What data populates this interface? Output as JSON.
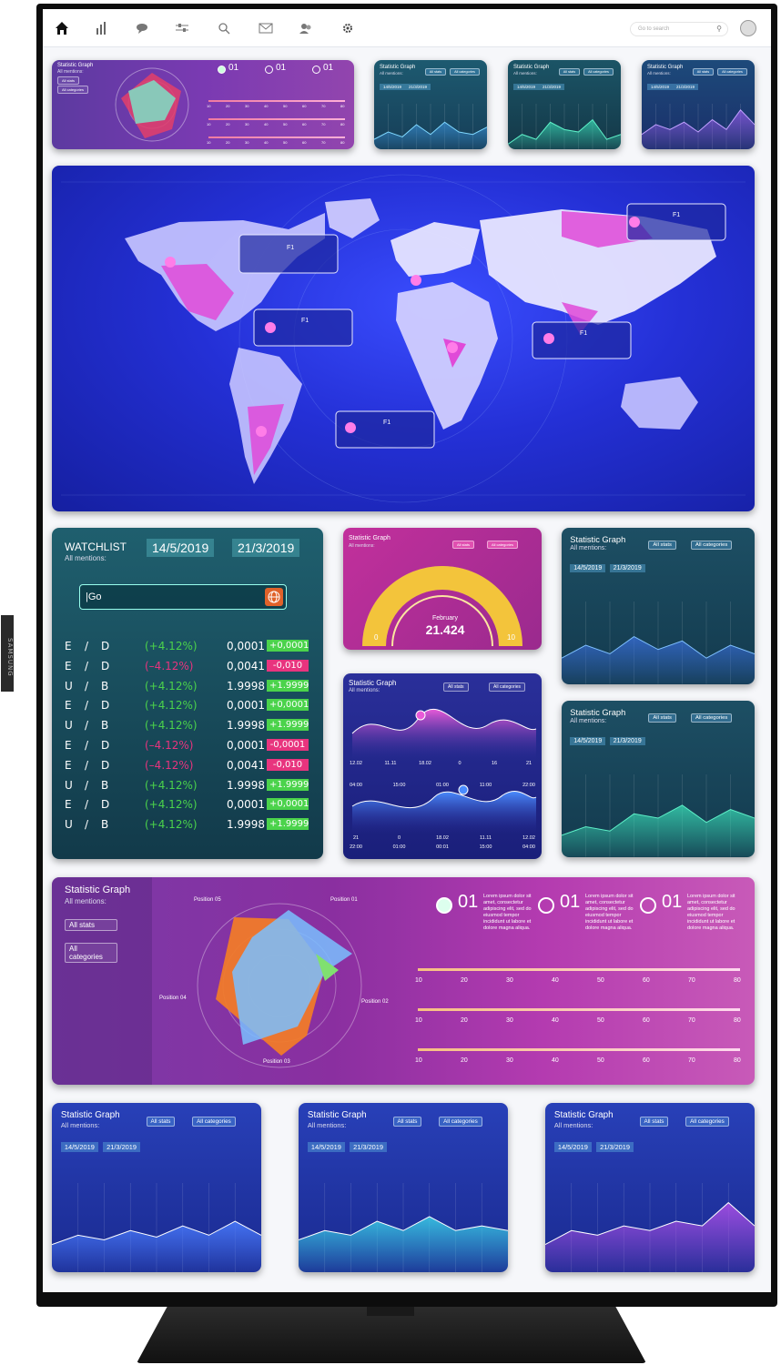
{
  "brand_side_label": "SAMSUNG",
  "colors": {
    "purple": "#6a2f96",
    "magenta": "#c0309a",
    "teal": "#1b5a66",
    "blue": "#1e2fb0",
    "green": "#4bd34b",
    "pink": "#e8347e"
  },
  "topnav": {
    "icons": [
      "home-icon",
      "bar-chart-icon",
      "chat-icon",
      "sliders-icon",
      "search-icon",
      "mail-icon",
      "users-icon",
      "gear-icon"
    ],
    "search_placeholder": "Go to search"
  },
  "top_radar": {
    "title": "Statistic Graph",
    "subtitle": "All mentions:",
    "dropdown1": "All stats",
    "dropdown2": "All categories",
    "options": [
      {
        "num": "01"
      },
      {
        "num": "01"
      },
      {
        "num": "01"
      }
    ],
    "scale": [
      "10",
      "20",
      "30",
      "40",
      "50",
      "60",
      "70",
      "80"
    ]
  },
  "top_minis": [
    {
      "title": "Statistic Graph",
      "subtitle": "All mentions:",
      "d1": "All stats",
      "d2": "All categories",
      "date1": "14/5/2019",
      "date2": "21/3/2019",
      "style": "teal-line"
    },
    {
      "title": "Statistic Graph",
      "subtitle": "All mentions:",
      "d1": "All stats",
      "d2": "All categories",
      "date1": "14/5/2019",
      "date2": "21/3/2019",
      "style": "teal-fill"
    },
    {
      "title": "Statistic Graph",
      "subtitle": "All mentions:",
      "d1": "All stats",
      "d2": "All categories",
      "date1": "14/5/2019",
      "date2": "21/3/2019",
      "style": "purple-fill"
    }
  ],
  "map": {
    "label": "F1"
  },
  "watchlist": {
    "title": "WATCHLIST",
    "subtitle": "All mentions:",
    "date1": "14/5/2019",
    "date2": "21/3/2019",
    "search_value": "|Go",
    "rows": [
      {
        "a": "E",
        "b": "D",
        "pct": "(+4.12%)",
        "val": "0,0001",
        "chg": "+0,0001",
        "up": true
      },
      {
        "a": "E",
        "b": "D",
        "pct": "(–4.12%)",
        "val": "0,0041",
        "chg": "-0,010",
        "up": false
      },
      {
        "a": "U",
        "b": "B",
        "pct": "(+4.12%)",
        "val": "1.9998",
        "chg": "+1.9999",
        "up": true
      },
      {
        "a": "E",
        "b": "D",
        "pct": "(+4.12%)",
        "val": "0,0001",
        "chg": "+0,0001",
        "up": true
      },
      {
        "a": "U",
        "b": "B",
        "pct": "(+4.12%)",
        "val": "1.9998",
        "chg": "+1.9999",
        "up": true
      },
      {
        "a": "E",
        "b": "D",
        "pct": "(–4.12%)",
        "val": "0,0001",
        "chg": "-0,0001",
        "up": false
      },
      {
        "a": "E",
        "b": "D",
        "pct": "(–4.12%)",
        "val": "0,0041",
        "chg": "-0,010",
        "up": false
      },
      {
        "a": "U",
        "b": "B",
        "pct": "(+4.12%)",
        "val": "1.9998",
        "chg": "+1.9999",
        "up": true
      },
      {
        "a": "E",
        "b": "D",
        "pct": "(+4.12%)",
        "val": "0,0001",
        "chg": "+0,0001",
        "up": true
      },
      {
        "a": "U",
        "b": "B",
        "pct": "(+4.12%)",
        "val": "1.9998",
        "chg": "+1.9999",
        "up": true
      }
    ]
  },
  "gauge": {
    "title": "Statistic Graph",
    "subtitle": "All mentions:",
    "d1": "All stats",
    "d2": "All categories",
    "month": "February",
    "value": "21.424",
    "min": "0",
    "max": "10",
    "fraction": 1.0
  },
  "wave": {
    "title": "Statistic Graph",
    "subtitle": "All mentions:",
    "d1": "All stats",
    "d2": "All categories",
    "ticks_top": [
      "12.02",
      "11.11",
      "18.02",
      "0",
      "16",
      "21"
    ],
    "times1": [
      "04:00",
      "15:00",
      "01:00",
      "11:00",
      "22:00"
    ],
    "ticks_bottom": [
      "21",
      "0",
      "18.02",
      "11.11",
      "12.02"
    ],
    "times2": [
      "22:00",
      "01:00",
      "00:01",
      "15:00",
      "04:00"
    ]
  },
  "mid_right": [
    {
      "title": "Statistic Graph",
      "subtitle": "All mentions:",
      "d1": "All stats",
      "d2": "All categories",
      "date1": "14/5/2019",
      "date2": "21/3/2019"
    },
    {
      "title": "Statistic Graph",
      "subtitle": "All mentions:",
      "d1": "All stats",
      "d2": "All categories",
      "date1": "14/5/2019",
      "date2": "21/3/2019"
    }
  ],
  "big_radar": {
    "title": "Statistic Graph",
    "subtitle": "All mentions:",
    "d1": "All stats",
    "d2": "All categories",
    "pos_labels": [
      "Position 05",
      "Position 01",
      "Position 04",
      "Position 02",
      "Position 03"
    ],
    "options": [
      {
        "num": "01",
        "text": "Lorem ipsum dolor sit amet, consectetur adipiscing elit, sed do eiusmod tempor incididunt ut labore et dolore magna aliqua."
      },
      {
        "num": "01",
        "text": "Lorem ipsum dolor sit amet, consectetur adipiscing elit, sed do eiusmod tempor incididunt ut labore et dolore magna aliqua."
      },
      {
        "num": "01",
        "text": "Lorem ipsum dolor sit amet, consectetur adipiscing elit, sed do eiusmod tempor incididunt ut labore et dolore magna aliqua."
      }
    ],
    "scale": [
      "10",
      "20",
      "30",
      "40",
      "50",
      "60",
      "70",
      "80"
    ]
  },
  "bottom_cards": [
    {
      "title": "Statistic Graph",
      "subtitle": "All mentions:",
      "d1": "All stats",
      "d2": "All categories",
      "date1": "14/5/2019",
      "date2": "21/3/2019"
    },
    {
      "title": "Statistic Graph",
      "subtitle": "All mentions:",
      "d1": "All stats",
      "d2": "All categories",
      "date1": "14/5/2019",
      "date2": "21/3/2019"
    },
    {
      "title": "Statistic Graph",
      "subtitle": "All mentions:",
      "d1": "All stats",
      "d2": "All categories",
      "date1": "14/5/2019",
      "date2": "21/3/2019"
    }
  ]
}
